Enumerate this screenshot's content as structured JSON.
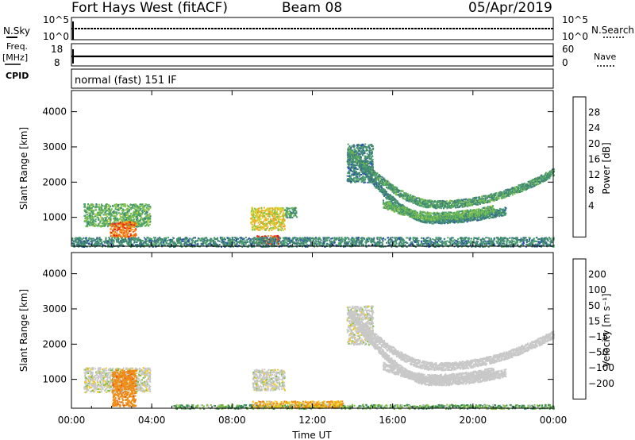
{
  "header": {
    "station": "Fort Hays West (fitACF)",
    "beam": "Beam 08",
    "date": "05/Apr/2019"
  },
  "top_panels": {
    "nsky_label": "N.Sky",
    "nsky_ticks": [
      "10^5",
      "10^0"
    ],
    "nsearch_label": "N.Search",
    "nsearch_ticks": [
      "10^5",
      "10^0"
    ],
    "freq_label": "Freq.",
    "freq_unit": "[MHz]",
    "freq_ticks": [
      "18",
      "8"
    ],
    "nave_label": "Nave",
    "nave_ticks": [
      "60",
      "0"
    ],
    "cpid_label": "CPID",
    "cpid_value": "normal (fast) 151 IF"
  },
  "chart_data": [
    {
      "type": "heatmap",
      "name": "power",
      "ylabel": "Slant Range [km]",
      "ylim": [
        180,
        4600
      ],
      "yticks": [
        1000,
        2000,
        3000,
        4000
      ],
      "xlim": [
        0,
        24
      ],
      "xticks": [
        0,
        4,
        8,
        12,
        16,
        20,
        24
      ],
      "colorbar": {
        "label": "Power [dB]",
        "range": [
          0,
          32
        ],
        "ticks": [
          "4",
          "8",
          "12",
          "16",
          "20",
          "24",
          "28"
        ],
        "colors": [
          "#0a1ee6",
          "#2c4fb0",
          "#3f7d7a",
          "#4aa06a",
          "#7fc24d",
          "#d7d232",
          "#f5a51e",
          "#f06a14",
          "#e61e10"
        ]
      },
      "regions": [
        {
          "t": [
            0.6,
            3.9
          ],
          "r": [
            750,
            1400
          ],
          "value": 14
        },
        {
          "t": [
            1.9,
            3.2
          ],
          "r": [
            450,
            900
          ],
          "value": 26
        },
        {
          "t": [
            8.9,
            10.6
          ],
          "r": [
            650,
            1300
          ],
          "value": 20
        },
        {
          "t": [
            9.2,
            10.3
          ],
          "r": [
            250,
            500
          ],
          "value": 28
        },
        {
          "t": [
            10.6,
            11.2
          ],
          "r": [
            1000,
            1300
          ],
          "value": 12
        },
        {
          "t": [
            13.7,
            15.0
          ],
          "r": [
            2000,
            3100
          ],
          "value": 10
        },
        {
          "t": [
            0,
            24
          ],
          "r": [
            180,
            450
          ],
          "value": 10
        }
      ],
      "arcs": [
        {
          "t": [
            13.8,
            24
          ],
          "r0": 2900,
          "rmin": 1380,
          "tmin": 18.2,
          "r1": 2300,
          "value": 12
        },
        {
          "t": [
            14.3,
            21.6
          ],
          "r0": 2500,
          "rmin": 950,
          "tmin": 18.0,
          "r1": 1200,
          "value": 10
        },
        {
          "t": [
            15.5,
            21.0
          ],
          "r0": 1400,
          "rmin": 1050,
          "tmin": 18.0,
          "r1": 1250,
          "value": 14
        }
      ]
    },
    {
      "type": "heatmap",
      "name": "velocity",
      "ylabel": "Slant Range [km]",
      "xlabel": "Time UT",
      "ylim": [
        180,
        4600
      ],
      "yticks": [
        1000,
        2000,
        3000,
        4000
      ],
      "xlim": [
        0,
        24
      ],
      "xticks": [
        0,
        4,
        8,
        12,
        16,
        20,
        24
      ],
      "xticklabels": [
        "00:00",
        "04:00",
        "08:00",
        "12:00",
        "16:00",
        "20:00",
        "00:00"
      ],
      "colorbar": {
        "label": "Velocity [m s⁻¹]",
        "ticks": [
          "200",
          "100",
          "50",
          "15",
          "−15",
          "−50",
          "−100",
          "−200"
        ],
        "colors": [
          "#1e28c8",
          "#2c5fa0",
          "#3a8a5a",
          "#7cc040",
          "#c8c8c8",
          "#f0c81e",
          "#f08c14",
          "#e65a10",
          "#e61e10"
        ]
      },
      "regions": [
        {
          "t": [
            0.6,
            3.9
          ],
          "r": [
            650,
            1350
          ],
          "value": 0
        },
        {
          "t": [
            2.0,
            3.2
          ],
          "r": [
            250,
            1300
          ],
          "value": -60
        },
        {
          "t": [
            9.0,
            10.6
          ],
          "r": [
            700,
            1300
          ],
          "value": 0
        },
        {
          "t": [
            5.0,
            24
          ],
          "r": [
            180,
            300
          ],
          "value": 30
        },
        {
          "t": [
            9.0,
            13.5
          ],
          "r": [
            200,
            400
          ],
          "value": -30
        },
        {
          "t": [
            13.7,
            15.0
          ],
          "r": [
            2000,
            3100
          ],
          "value": 0
        }
      ],
      "arcs": [
        {
          "t": [
            13.8,
            24
          ],
          "r0": 2900,
          "rmin": 1380,
          "tmin": 18.2,
          "r1": 2300,
          "value": 0
        },
        {
          "t": [
            14.3,
            21.6
          ],
          "r0": 2500,
          "rmin": 950,
          "tmin": 18.0,
          "r1": 1200,
          "value": 0
        },
        {
          "t": [
            15.5,
            21.0
          ],
          "r0": 1400,
          "rmin": 1050,
          "tmin": 18.0,
          "r1": 1250,
          "value": 0
        }
      ]
    }
  ]
}
